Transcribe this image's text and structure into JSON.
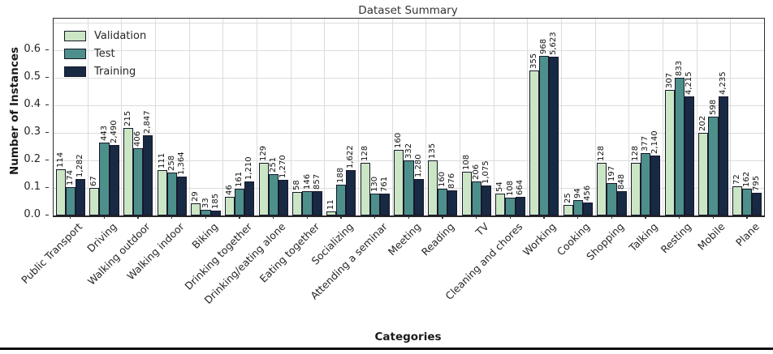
{
  "title": "Dataset Summary",
  "ylabel": "Number of Instances",
  "xlabel": "Categories",
  "legend": {
    "position": "upper-left",
    "entries": [
      "Validation",
      "Test",
      "Training"
    ]
  },
  "colors": {
    "validation": "#cbe6c4",
    "test": "#4d8f8a",
    "training": "#182944",
    "bar_edge": "#17172b",
    "grid": "#dcdcdc",
    "spine": "#2e2e2e",
    "text": "#262626",
    "bottom_rule": "#0a0a0a"
  },
  "chart_data": {
    "type": "bar",
    "title": "Dataset Summary",
    "xlabel": "Categories",
    "ylabel": "Number of Instances",
    "ylim": [
      0,
      0.715
    ],
    "yticks": [
      0.0,
      0.1,
      0.2,
      0.3,
      0.4,
      0.5,
      0.6
    ],
    "ytick_labels": [
      "0.0",
      "0.1",
      "0.2",
      "0.3",
      "0.4",
      "0.5",
      "0.6"
    ],
    "ygrid_values": [
      0.1,
      0.2,
      0.3,
      0.4,
      0.5,
      0.6,
      0.7
    ],
    "grid": "both",
    "legend_position": "upper-left",
    "categories": [
      "Public Transport",
      "Driving",
      "Walking outdoor",
      "Walking indoor",
      "Biking",
      "Drinking together",
      "Drinking/eating alone",
      "Eating together",
      "Socializing",
      "Attending a seminar",
      "Meeting",
      "Reading",
      "TV",
      "Cleaning and chores",
      "Working",
      "Cooking",
      "Shopping",
      "Talking",
      "Resting",
      "Mobile",
      "Plane"
    ],
    "series": [
      {
        "name": "Validation",
        "color": "#cbe6c4",
        "counts": [
          114,
          67,
          215,
          111,
          29,
          46,
          129,
          58,
          11,
          128,
          160,
          135,
          108,
          54,
          355,
          25,
          128,
          128,
          307,
          202,
          72
        ],
        "values": [
          0.169,
          0.099,
          0.319,
          0.165,
          0.043,
          0.068,
          0.191,
          0.086,
          0.016,
          0.19,
          0.237,
          0.2,
          0.16,
          0.08,
          0.527,
          0.037,
          0.19,
          0.19,
          0.455,
          0.3,
          0.107
        ]
      },
      {
        "name": "Test",
        "color": "#4d8f8a",
        "counts": [
          174,
          443,
          406,
          258,
          33,
          161,
          251,
          146,
          188,
          130,
          332,
          160,
          206,
          108,
          968,
          94,
          197,
          377,
          833,
          598,
          162
        ],
        "values": [
          0.104,
          0.265,
          0.243,
          0.155,
          0.02,
          0.096,
          0.15,
          0.087,
          0.113,
          0.078,
          0.199,
          0.096,
          0.123,
          0.065,
          0.58,
          0.056,
          0.118,
          0.226,
          0.499,
          0.358,
          0.097
        ]
      },
      {
        "name": "Training",
        "color": "#182944",
        "counts": [
          1282,
          2490,
          2847,
          1364,
          185,
          1210,
          1270,
          857,
          1622,
          761,
          1280,
          876,
          1075,
          664,
          5623,
          456,
          848,
          2140,
          4215,
          4235,
          795
        ],
        "values": [
          0.131,
          0.255,
          0.292,
          0.14,
          0.019,
          0.124,
          0.13,
          0.088,
          0.166,
          0.078,
          0.131,
          0.09,
          0.11,
          0.068,
          0.576,
          0.047,
          0.087,
          0.219,
          0.432,
          0.434,
          0.081
        ]
      }
    ]
  }
}
